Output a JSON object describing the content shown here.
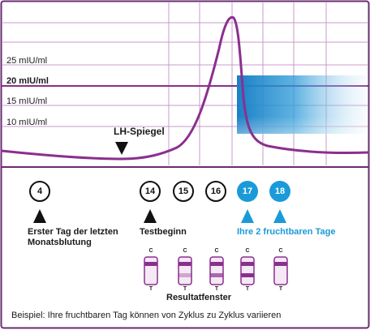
{
  "chart": {
    "levels": [
      {
        "label": "25 mIU/ml",
        "bold": false
      },
      {
        "label": "20 mIU/ml",
        "bold": true
      },
      {
        "label": "15 mIU/ml",
        "bold": false
      },
      {
        "label": "10 mIU/ml",
        "bold": false
      }
    ],
    "lh_label": "LH-Spiegel"
  },
  "days": [
    {
      "number": "4",
      "fertile": false
    },
    {
      "number": "14",
      "fertile": false
    },
    {
      "number": "15",
      "fertile": false
    },
    {
      "number": "16",
      "fertile": false
    },
    {
      "number": "17",
      "fertile": true
    },
    {
      "number": "18",
      "fertile": true
    }
  ],
  "captions": {
    "first_day_line1": "Erster Tag der letzten",
    "first_day_line2": "Monatsblutung",
    "test_start": "Testbeginn",
    "fertile_days": "Ihre 2 fruchtbaren Tage",
    "result_window": "Resultatfenster"
  },
  "strips": [
    {
      "top_label": "C",
      "bottom_label": "T",
      "t_intensity": 0
    },
    {
      "top_label": "C",
      "bottom_label": "T",
      "t_intensity": 0.35
    },
    {
      "top_label": "C",
      "bottom_label": "T",
      "t_intensity": 0.7
    },
    {
      "top_label": "C",
      "bottom_label": "T",
      "t_intensity": 1.0
    },
    {
      "top_label": "C",
      "bottom_label": "T",
      "t_intensity": 0
    }
  ],
  "footer": "Beispiel: Ihre fruchtbaren Tag können von Zyklus zu Zyklus variieren",
  "colors": {
    "purple": "#8b2f8e",
    "grid": "#c99bcb",
    "blue": "#1a9ad9",
    "frame": "#6a2c70"
  }
}
